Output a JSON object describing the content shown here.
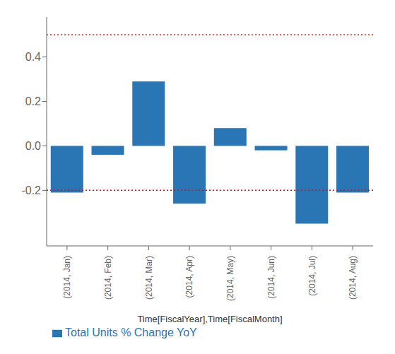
{
  "chart_data": {
    "type": "bar",
    "xlabel": "Time[FiscalYear],Time[FiscalMonth]",
    "categories": [
      "(2014, Jan)",
      "(2014, Feb)",
      "(2014, Mar)",
      "(2014, Apr)",
      "(2014, May)",
      "(2014, Jun)",
      "(2014, Jul)",
      "(2014, Aug)"
    ],
    "series": [
      {
        "name": "Total Units % Change YoY",
        "color": "#2a76b5",
        "values": [
          -0.21,
          -0.04,
          0.29,
          -0.26,
          0.08,
          -0.02,
          -0.35,
          -0.21
        ]
      }
    ],
    "hlines": [
      {
        "value": 0.5,
        "color": "red",
        "line_style": "dotted"
      },
      {
        "value": -0.2,
        "color": "red",
        "line_style": "dotted"
      }
    ],
    "ylim": [
      -0.45,
      0.58
    ],
    "yticks": [
      -0.2,
      {
        "value": 0,
        "label": "0.0"
      },
      0.2,
      0.4
    ],
    "grid": false,
    "legend": "lower left"
  }
}
